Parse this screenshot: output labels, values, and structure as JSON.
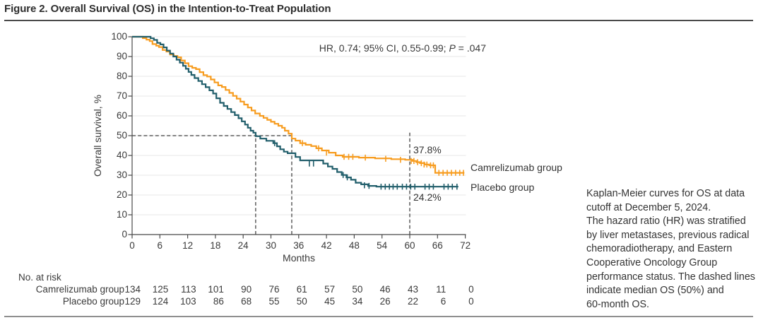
{
  "title": "Figure 2. Overall Survival (OS) in the Intention-to-Treat Population",
  "annotation": {
    "hr_prefix": "HR, 0.74; 95% CI, 0.55-0.99; ",
    "p_label": "P",
    "p_suffix": " = .047",
    "cam_60mo": "37.8%",
    "pla_60mo": "24.2%"
  },
  "caption": {
    "lines": [
      "Kaplan-Meier curves for OS at data",
      "cutoff at December 5, 2024.",
      "The hazard ratio (HR) was stratified",
      "by liver metastases, previous radical",
      "chemoradiotherapy, and Eastern",
      "Cooperative Oncology Group",
      "performance status. The dashed lines",
      "indicate median OS (50%) and",
      "60-month OS."
    ]
  },
  "risk_table": {
    "title": "No. at risk",
    "rows": [
      {
        "label": "Camrelizumab group",
        "values": [
          134,
          125,
          113,
          101,
          90,
          76,
          61,
          57,
          50,
          46,
          43,
          11,
          0
        ]
      },
      {
        "label": "Placebo group",
        "values": [
          129,
          124,
          103,
          86,
          68,
          55,
          50,
          45,
          34,
          26,
          22,
          6,
          0
        ]
      }
    ]
  },
  "chart_data": {
    "type": "line",
    "subtype": "kaplan-meier-step",
    "xlabel": "Months",
    "ylabel": "Overall survival, %",
    "xlim": [
      0,
      72
    ],
    "ylim": [
      0,
      100
    ],
    "xticks": [
      0,
      6,
      12,
      18,
      24,
      30,
      36,
      42,
      48,
      54,
      60,
      66,
      72
    ],
    "yticks": [
      0,
      10,
      20,
      30,
      40,
      50,
      60,
      70,
      80,
      90,
      100
    ],
    "grid": "horizontal-light",
    "grid_color": "#E7E7E7",
    "axis_color": "#4a4a4a",
    "dash_color": "#3c3c3c",
    "legend_position": "right-of-curve-end",
    "median_os_months": {
      "camrelizumab": 34.5,
      "placebo": 26.7
    },
    "os_60_month_pct": {
      "camrelizumab": 37.8,
      "placebo": 24.2
    },
    "dashed_lines": [
      {
        "orient": "h",
        "pct": 50,
        "m1": 0,
        "m2": 34.5
      },
      {
        "orient": "v",
        "m": 26.7,
        "p1": 0,
        "p2": 50
      },
      {
        "orient": "v",
        "m": 34.5,
        "p1": 0,
        "p2": 50
      },
      {
        "orient": "v",
        "m": 60,
        "p1": 0,
        "p2": 51.5
      }
    ],
    "series": [
      {
        "name": "Camrelizumab group",
        "color": "#F79C1F",
        "steps": [
          [
            0,
            100
          ],
          [
            2.3,
            99.3
          ],
          [
            3.1,
            98.5
          ],
          [
            3.8,
            97.8
          ],
          [
            4.4,
            96.3
          ],
          [
            5.2,
            95.5
          ],
          [
            5.8,
            94.8
          ],
          [
            6.6,
            93.3
          ],
          [
            7.4,
            92.5
          ],
          [
            8.2,
            91
          ],
          [
            9,
            90.3
          ],
          [
            9.8,
            89.6
          ],
          [
            10.6,
            88
          ],
          [
            11.4,
            86.6
          ],
          [
            12.2,
            85.1
          ],
          [
            13,
            84.3
          ],
          [
            13.8,
            83.6
          ],
          [
            14.6,
            82.1
          ],
          [
            15.4,
            80.6
          ],
          [
            16.2,
            79.9
          ],
          [
            17,
            78.4
          ],
          [
            17.8,
            76.9
          ],
          [
            18.6,
            75.4
          ],
          [
            19.4,
            74.6
          ],
          [
            20.2,
            73.1
          ],
          [
            21,
            71.6
          ],
          [
            21.8,
            70.1
          ],
          [
            22.6,
            68.7
          ],
          [
            23.4,
            67.2
          ],
          [
            24.2,
            65.7
          ],
          [
            25,
            64.2
          ],
          [
            25.8,
            62.7
          ],
          [
            26.6,
            61.2
          ],
          [
            27.6,
            60
          ],
          [
            28.4,
            59
          ],
          [
            29.2,
            58
          ],
          [
            30,
            57
          ],
          [
            30.8,
            56
          ],
          [
            31.6,
            55
          ],
          [
            32.4,
            54
          ],
          [
            33,
            52.5
          ],
          [
            33.8,
            51
          ],
          [
            34.5,
            48.5
          ],
          [
            35.3,
            47.5
          ],
          [
            36.3,
            46.2
          ],
          [
            37.5,
            45.4
          ],
          [
            38.7,
            44.7
          ],
          [
            39.8,
            43.6
          ],
          [
            41,
            42.5
          ],
          [
            42.5,
            41.4
          ],
          [
            44,
            40
          ],
          [
            45.5,
            39.3
          ],
          [
            49,
            38.9
          ],
          [
            52.5,
            38.5
          ],
          [
            56,
            38.1
          ],
          [
            59,
            37.8
          ],
          [
            60.6,
            37.2
          ],
          [
            61.4,
            36.6
          ],
          [
            62.2,
            36.1
          ],
          [
            63.2,
            35.4
          ],
          [
            64.2,
            35
          ],
          [
            65.5,
            31.2
          ],
          [
            71.8,
            31.2
          ]
        ],
        "censors": [
          [
            36.8,
            46.2
          ],
          [
            40.3,
            43.6
          ],
          [
            42,
            41.4
          ],
          [
            45.8,
            39.3
          ],
          [
            46.8,
            39.3
          ],
          [
            47.7,
            39.3
          ],
          [
            50.4,
            38.9
          ],
          [
            54.8,
            38.3
          ],
          [
            58,
            37.8
          ],
          [
            60.3,
            37.2
          ],
          [
            60.9,
            37.2
          ],
          [
            61.7,
            36.6
          ],
          [
            62.5,
            36.1
          ],
          [
            63.1,
            35.4
          ],
          [
            63.7,
            35.4
          ],
          [
            64.5,
            35
          ],
          [
            65.1,
            35
          ],
          [
            66.3,
            31.2
          ],
          [
            67.2,
            31.2
          ],
          [
            68.1,
            31.2
          ],
          [
            69,
            31.2
          ],
          [
            69.9,
            31.2
          ],
          [
            70.8,
            31.2
          ],
          [
            71.6,
            31.2
          ]
        ]
      },
      {
        "name": "Placebo group",
        "color": "#215E6B",
        "steps": [
          [
            0,
            100
          ],
          [
            4,
            99.2
          ],
          [
            4.7,
            98.4
          ],
          [
            5.4,
            96.9
          ],
          [
            6.1,
            96.1
          ],
          [
            6.8,
            94.6
          ],
          [
            7.5,
            93
          ],
          [
            8.2,
            91.5
          ],
          [
            8.9,
            90
          ],
          [
            9.6,
            88.4
          ],
          [
            10.3,
            86.9
          ],
          [
            11,
            85.3
          ],
          [
            11.6,
            83.8
          ],
          [
            12.2,
            82.2
          ],
          [
            12.8,
            80.7
          ],
          [
            13.5,
            79.1
          ],
          [
            14.3,
            77.6
          ],
          [
            15.1,
            76
          ],
          [
            15.9,
            74.5
          ],
          [
            16.7,
            72.9
          ],
          [
            17.5,
            71.3
          ],
          [
            18.2,
            68.9
          ],
          [
            19,
            66.6
          ],
          [
            19.8,
            65
          ],
          [
            20.6,
            63.5
          ],
          [
            21.4,
            61.9
          ],
          [
            22.2,
            60.4
          ],
          [
            23,
            58.8
          ],
          [
            23.7,
            57.2
          ],
          [
            24.4,
            55.6
          ],
          [
            25,
            54
          ],
          [
            25.6,
            52.5
          ],
          [
            26.2,
            51.5
          ],
          [
            26.7,
            49.7
          ],
          [
            27.7,
            48.5
          ],
          [
            29,
            47.4
          ],
          [
            30.5,
            46.2
          ],
          [
            31.3,
            44.6
          ],
          [
            32,
            43.1
          ],
          [
            32.8,
            41.9
          ],
          [
            33.6,
            41.1
          ],
          [
            35.3,
            39.2
          ],
          [
            36.3,
            37.5
          ],
          [
            41.3,
            35.9
          ],
          [
            42.3,
            34.4
          ],
          [
            43.3,
            33.2
          ],
          [
            44.3,
            31.6
          ],
          [
            45.3,
            30.1
          ],
          [
            46.3,
            28.9
          ],
          [
            47.3,
            27.7
          ],
          [
            48.3,
            26.2
          ],
          [
            49.5,
            25.4
          ],
          [
            51,
            24.6
          ],
          [
            52.8,
            24.2
          ],
          [
            70.5,
            24.2
          ]
        ],
        "censors": [
          [
            30.8,
            46.2
          ],
          [
            38.3,
            35.9
          ],
          [
            39.2,
            35.9
          ],
          [
            45.6,
            30.1
          ],
          [
            46.5,
            28.9
          ],
          [
            50.2,
            24.9
          ],
          [
            51.2,
            24.6
          ],
          [
            53.8,
            24.2
          ],
          [
            54.7,
            24.2
          ],
          [
            55.6,
            24.2
          ],
          [
            56.4,
            24.2
          ],
          [
            57.3,
            24.2
          ],
          [
            58.4,
            24.2
          ],
          [
            59.3,
            24.2
          ],
          [
            60.2,
            24.2
          ],
          [
            61.1,
            24.2
          ],
          [
            63.3,
            24.2
          ],
          [
            64.2,
            24.2
          ],
          [
            65.1,
            24.2
          ],
          [
            67.4,
            24.2
          ],
          [
            68.3,
            24.2
          ],
          [
            69.2,
            24.2
          ],
          [
            70.2,
            24.2
          ]
        ]
      }
    ]
  }
}
